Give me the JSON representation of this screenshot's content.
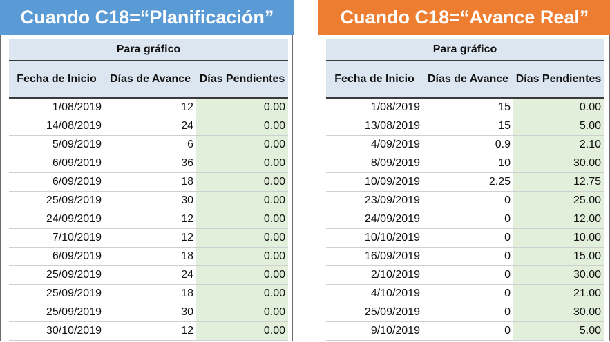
{
  "colors": {
    "left_banner": "#5b9bd5",
    "right_banner": "#ed7d31",
    "header_fill": "#dce6f1",
    "pending_fill": "#e2efda"
  },
  "left": {
    "title": "Cuando C18=“Planificación”",
    "subheader": "Para gráfico",
    "columns": [
      "Fecha de Inicio",
      "Días de Avance",
      "Días Pendientes"
    ],
    "rows": [
      [
        "1/08/2019",
        "12",
        "0.00"
      ],
      [
        "14/08/2019",
        "24",
        "0.00"
      ],
      [
        "5/09/2019",
        "6",
        "0.00"
      ],
      [
        "6/09/2019",
        "36",
        "0.00"
      ],
      [
        "6/09/2019",
        "18",
        "0.00"
      ],
      [
        "25/09/2019",
        "30",
        "0.00"
      ],
      [
        "24/09/2019",
        "12",
        "0.00"
      ],
      [
        "7/10/2019",
        "12",
        "0.00"
      ],
      [
        "6/09/2019",
        "18",
        "0.00"
      ],
      [
        "25/09/2019",
        "24",
        "0.00"
      ],
      [
        "25/09/2019",
        "18",
        "0.00"
      ],
      [
        "25/09/2019",
        "30",
        "0.00"
      ],
      [
        "30/10/2019",
        "12",
        "0.00"
      ]
    ]
  },
  "right": {
    "title": "Cuando C18=“Avance Real”",
    "subheader": "Para gráfico",
    "columns": [
      "Fecha de Inicio",
      "Días de Avance",
      "Días Pendientes"
    ],
    "rows": [
      [
        "1/08/2019",
        "15",
        "0.00"
      ],
      [
        "13/08/2019",
        "15",
        "5.00"
      ],
      [
        "4/09/2019",
        "0.9",
        "2.10"
      ],
      [
        "8/09/2019",
        "10",
        "30.00"
      ],
      [
        "10/09/2019",
        "2.25",
        "12.75"
      ],
      [
        "23/09/2019",
        "0",
        "25.00"
      ],
      [
        "24/09/2019",
        "0",
        "12.00"
      ],
      [
        "10/10/2019",
        "0",
        "10.00"
      ],
      [
        "16/09/2019",
        "0",
        "15.00"
      ],
      [
        "2/10/2019",
        "0",
        "30.00"
      ],
      [
        "4/10/2019",
        "0",
        "21.00"
      ],
      [
        "25/09/2019",
        "0",
        "30.00"
      ],
      [
        "9/10/2019",
        "0",
        "5.00"
      ]
    ]
  }
}
